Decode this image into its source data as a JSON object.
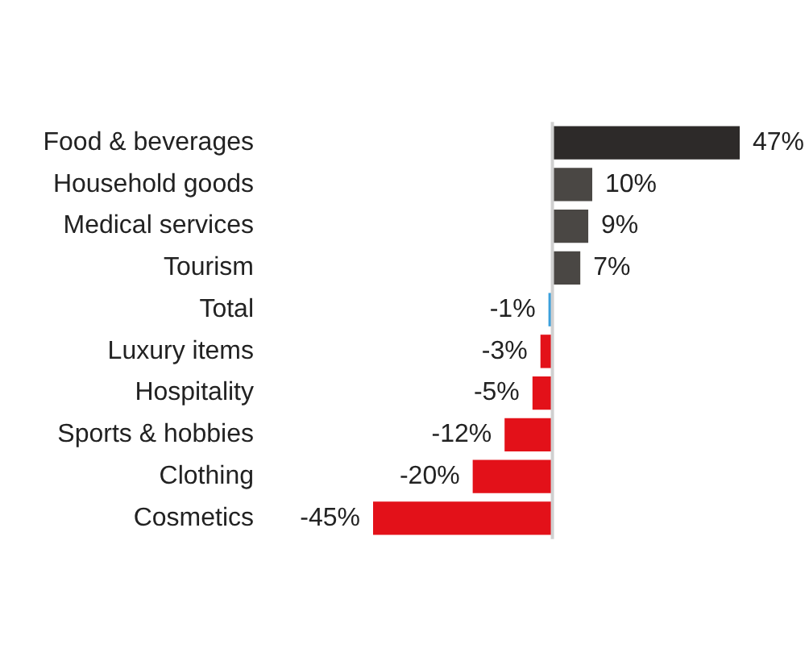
{
  "chart_data": {
    "type": "bar",
    "orientation": "horizontal",
    "categories": [
      "Food & beverages",
      "Household goods",
      "Medical services",
      "Tourism",
      "Total",
      "Luxury items",
      "Hospitality",
      "Sports & hobbies",
      "Clothing",
      "Cosmetics"
    ],
    "values": [
      47,
      10,
      9,
      7,
      -1,
      -3,
      -5,
      -12,
      -20,
      -45
    ],
    "colors": [
      "#2d2a29",
      "#4a4744",
      "#4a4744",
      "#4a4744",
      "#3ba0dc",
      "#e31119",
      "#e31119",
      "#e31119",
      "#e31119",
      "#e31119"
    ],
    "value_labels": [
      "47%",
      "10%",
      "9%",
      "7%",
      "-1%",
      "-3%",
      "-5%",
      "-12%",
      "-20%",
      "-45%"
    ],
    "legend": false
  }
}
